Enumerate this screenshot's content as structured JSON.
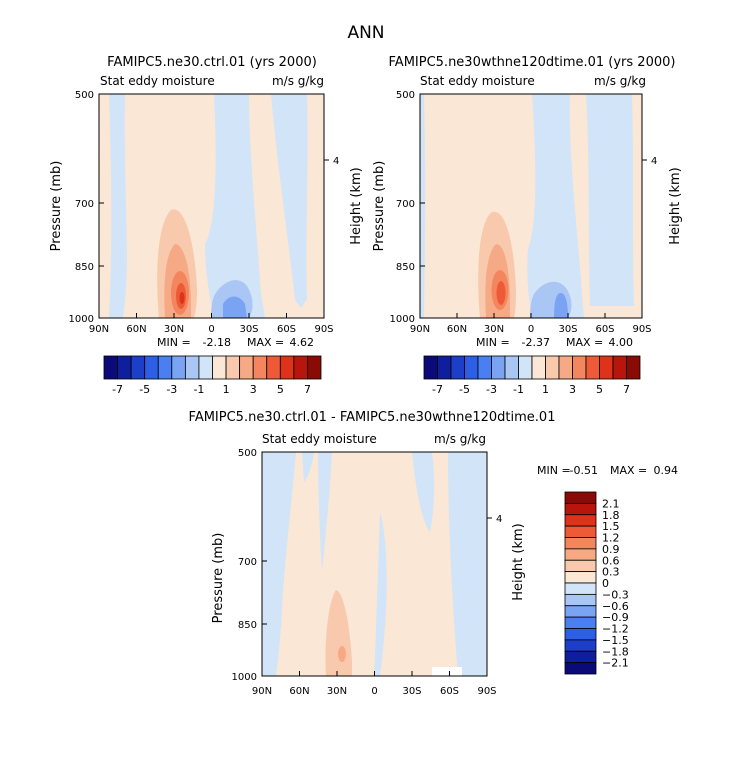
{
  "main_title": "ANN",
  "colors": {
    "negative": [
      "#0a0a78",
      "#0f1e9c",
      "#1c3ec8",
      "#2d5fe6",
      "#4a7ff4",
      "#7aa3f4",
      "#a9c6f4",
      "#d2e4f8"
    ],
    "positive": [
      "#fbe7d6",
      "#f8c9ad",
      "#f6a985",
      "#f3855f",
      "#ee5a38",
      "#de3319",
      "#b8160d",
      "#8a0a06"
    ]
  },
  "chart_data": [
    {
      "type": "contour",
      "title": "FAMIPC5.ne30.ctrl.01 (yrs 2000)",
      "subtitle_left": "Stat eddy moisture",
      "subtitle_right": "m/s g/kg",
      "ylabel": "Pressure (mb)",
      "ylabel_right": "Height (km)",
      "x_ticks": [
        "90N",
        "60N",
        "30N",
        "0",
        "30S",
        "60S",
        "90S"
      ],
      "y_ticks": [
        "500",
        "700",
        "850",
        "1000"
      ],
      "right_ticks": [
        "4"
      ],
      "min_label": "MIN =",
      "min": "-2.18",
      "max_label": "MAX =",
      "max": "4.62",
      "colorbar_labels": [
        "-7",
        "-5",
        "-3",
        "-1",
        "1",
        "3",
        "5",
        "7"
      ]
    },
    {
      "type": "contour",
      "title": "FAMIPC5.ne30wthne120dtime.01 (yrs 2000)",
      "subtitle_left": "Stat eddy moisture",
      "subtitle_right": "m/s g/kg",
      "ylabel": "Pressure (mb)",
      "ylabel_right": "Height (km)",
      "x_ticks": [
        "90N",
        "60N",
        "30N",
        "0",
        "30S",
        "60S",
        "90S"
      ],
      "y_ticks": [
        "500",
        "700",
        "850",
        "1000"
      ],
      "right_ticks": [
        "4"
      ],
      "min_label": "MIN =",
      "min": "-2.37",
      "max_label": "MAX =",
      "max": "4.00",
      "colorbar_labels": [
        "-7",
        "-5",
        "-3",
        "-1",
        "1",
        "3",
        "5",
        "7"
      ]
    },
    {
      "type": "contour",
      "title": "FAMIPC5.ne30.ctrl.01 - FAMIPC5.ne30wthne120dtime.01",
      "subtitle_left": "Stat eddy moisture",
      "subtitle_right": "m/s g/kg",
      "ylabel": "Pressure (mb)",
      "ylabel_right": "Height (km)",
      "x_ticks": [
        "90N",
        "60N",
        "30N",
        "0",
        "30S",
        "60S",
        "90S"
      ],
      "y_ticks": [
        "500",
        "700",
        "850",
        "1000"
      ],
      "right_ticks": [
        "4"
      ],
      "min_label": "MIN =",
      "min": "-0.51",
      "max_label": "MAX =",
      "max": "0.94",
      "colorbar_labels": [
        "2.1",
        "1.8",
        "1.5",
        "1.2",
        "0.9",
        "0.6",
        "0.3",
        "0",
        "-0.3",
        "-0.6",
        "-0.9",
        "-1.2",
        "-1.5",
        "-1.8",
        "-2.1"
      ]
    }
  ]
}
